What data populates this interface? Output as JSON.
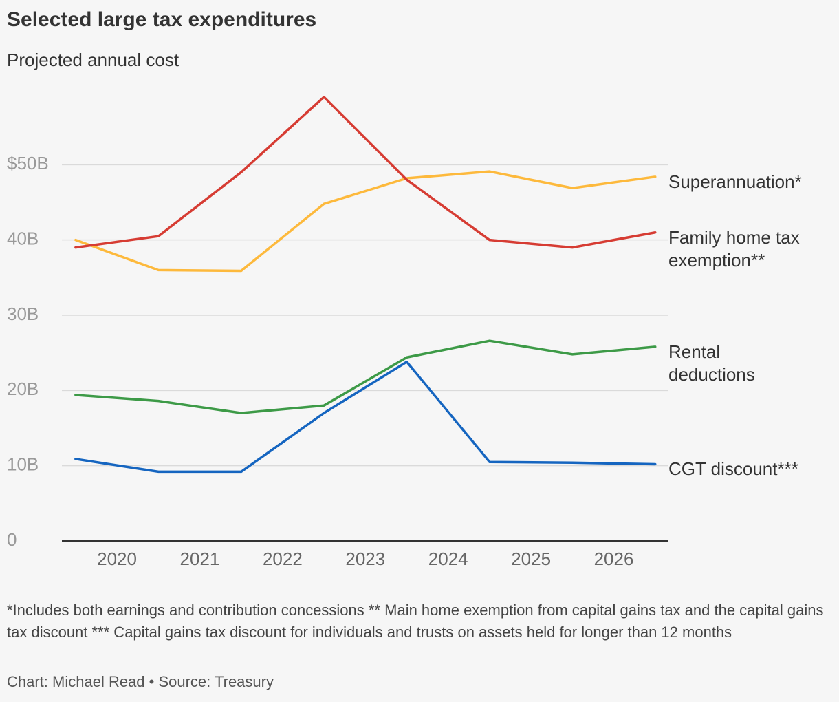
{
  "chart_data": {
    "type": "line",
    "title": "Selected large tax expenditures",
    "subtitle": "Projected annual cost",
    "x": [
      2019.5,
      2020.5,
      2021.5,
      2022.5,
      2023.5,
      2024.5,
      2025.5,
      2026.5
    ],
    "xlim": [
      2019.335,
      2026.66
    ],
    "xticks": [
      2020,
      2021,
      2022,
      2023,
      2024,
      2025,
      2026
    ],
    "ylim": [
      0,
      60000000000
    ],
    "yticks": [
      {
        "value": 0,
        "label": "0"
      },
      {
        "value": 10000000000,
        "label": "10B"
      },
      {
        "value": 20000000000,
        "label": "20B"
      },
      {
        "value": 30000000000,
        "label": "30B"
      },
      {
        "value": 40000000000,
        "label": "40B"
      },
      {
        "value": 50000000000,
        "label": "$50B"
      }
    ],
    "grid": true,
    "series": [
      {
        "name": "Superannuation*",
        "color": "#fdb93c",
        "values": [
          40000000000,
          36000000000,
          35900000000,
          44800000000,
          48200000000,
          49100000000,
          46900000000,
          48400000000
        ]
      },
      {
        "name": "Family home tax exemption**",
        "color": "#d63c33",
        "values": [
          39000000000,
          40500000000,
          49000000000,
          59000000000,
          48000000000,
          40000000000,
          39000000000,
          41000000000
        ]
      },
      {
        "name": "Rental deductions",
        "color": "#3d9a47",
        "values": [
          19400000000,
          18600000000,
          17000000000,
          18000000000,
          24400000000,
          26600000000,
          24800000000,
          25800000000
        ]
      },
      {
        "name": "CGT discount***",
        "color": "#1565c0",
        "values": [
          10900000000,
          9200000000,
          9200000000,
          17000000000,
          23800000000,
          10500000000,
          10400000000,
          10200000000
        ]
      }
    ],
    "footnote": "*Includes both earnings and contribution concessions ** Main home exemption from capital gains tax and the capital gains tax discount *** Capital gains tax discount for individuals and trusts on assets held for longer than 12 months",
    "source": "Chart: Michael Read • Source: Treasury"
  }
}
